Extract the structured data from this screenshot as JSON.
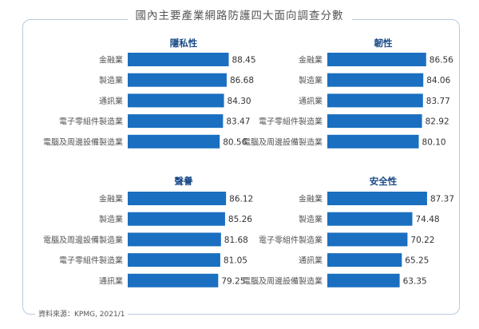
{
  "title": "國內主要產業網路防護四大面向調查分數",
  "source": "資料來源：KPMG, 2021/1",
  "colors": {
    "bar": "#1a6fc0",
    "panel_title": "#1a4a86",
    "category_text": "#555555",
    "value_text": "#333333",
    "frame_border": "#b9cbe0"
  },
  "chart_data": [
    {
      "type": "bar",
      "orientation": "horizontal",
      "title": "隱私性",
      "categories": [
        "金融業",
        "製造業",
        "通訊業",
        "電子零組件製造業",
        "電腦及周邊設備製造業"
      ],
      "values": [
        88.45,
        86.68,
        84.3,
        83.47,
        80.56
      ],
      "labels": [
        "88.45",
        "86.68",
        "84.30",
        "83.47",
        "80.56"
      ]
    },
    {
      "type": "bar",
      "orientation": "horizontal",
      "title": "韌性",
      "categories": [
        "金融業",
        "製造業",
        "通訊業",
        "電子零組件製造業",
        "電腦及周邊設備製造業"
      ],
      "values": [
        86.56,
        84.06,
        83.77,
        82.92,
        80.1
      ],
      "labels": [
        "86.56",
        "84.06",
        "83.77",
        "82.92",
        "80.10"
      ]
    },
    {
      "type": "bar",
      "orientation": "horizontal",
      "title": "聲譽",
      "categories": [
        "金融業",
        "製造業",
        "電腦及周邊設備製造業",
        "電子零組件製造業",
        "通訊業"
      ],
      "values": [
        86.12,
        85.26,
        81.68,
        81.05,
        79.25
      ],
      "labels": [
        "86.12",
        "85.26",
        "81.68",
        "81.05",
        "79.25"
      ]
    },
    {
      "type": "bar",
      "orientation": "horizontal",
      "title": "安全性",
      "categories": [
        "金融業",
        "製造業",
        "電子零組件製造業",
        "通訊業",
        "電腦及周邊設備製造業"
      ],
      "values": [
        87.37,
        74.48,
        70.22,
        65.25,
        63.35
      ],
      "labels": [
        "87.37",
        "74.48",
        "70.22",
        "65.25",
        "63.35"
      ]
    }
  ]
}
